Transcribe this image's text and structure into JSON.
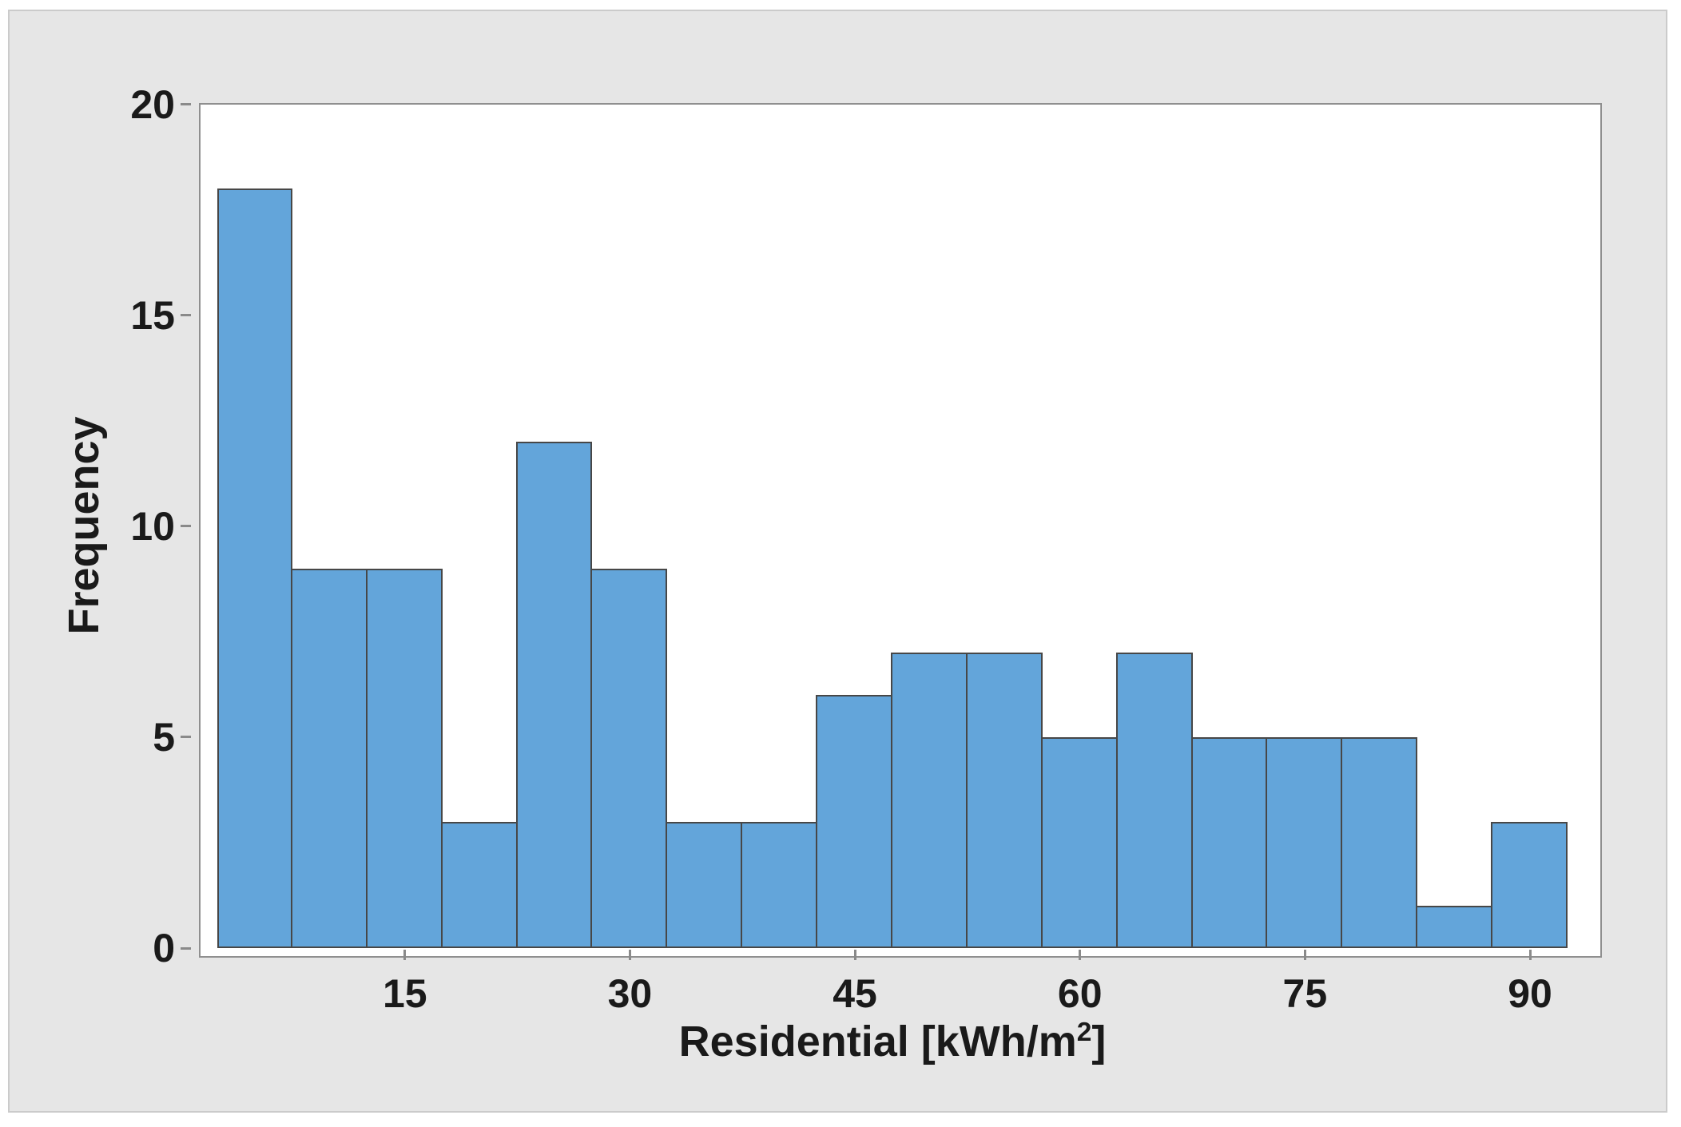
{
  "figure": {
    "page_background": "#ffffff",
    "panel_background": "#e6e6e6",
    "panel_border_color": "#cbcbcb",
    "plot_background": "#ffffff",
    "plot_border_color": "#8f8f8f",
    "tick_color": "#8a8a8a",
    "text_color": "#1a1a1a"
  },
  "chart_data": {
    "type": "bar",
    "subtype": "histogram",
    "title": "",
    "xlabel": "Residential [kWh/m²]",
    "xlabel_parts": {
      "prefix": "Residential [kWh/m",
      "sup": "2",
      "suffix": "]"
    },
    "ylabel": "Frequency",
    "bin_width": 5,
    "bin_centers": [
      5,
      10,
      15,
      20,
      25,
      30,
      35,
      40,
      45,
      50,
      55,
      60,
      65,
      70,
      75,
      80,
      85,
      90
    ],
    "values": [
      18,
      9,
      9,
      3,
      12,
      9,
      3,
      3,
      6,
      7,
      7,
      5,
      7,
      5,
      5,
      5,
      1,
      3
    ],
    "x_ticks": [
      15,
      30,
      45,
      60,
      75,
      90
    ],
    "y_ticks": [
      0,
      5,
      10,
      15,
      20
    ],
    "xlim": [
      0.74,
      94.26
    ],
    "ylim": [
      0,
      20.26
    ],
    "bar_fill": "#63a5da",
    "bar_border": "#474747",
    "grid": false,
    "legend": false
  }
}
